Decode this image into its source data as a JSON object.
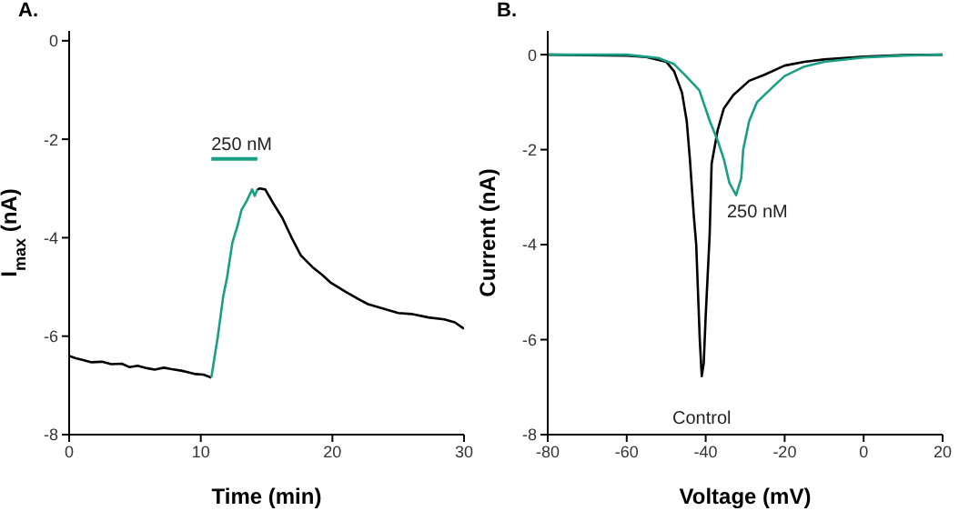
{
  "chart_data": [
    {
      "type": "line",
      "title": "A.",
      "xlabel": "Time (min)",
      "ylabel": "I$_{max}$ (nA)",
      "xlim": [
        0,
        30
      ],
      "ylim": [
        -8,
        0.2
      ],
      "xticks": [
        0,
        10,
        20,
        30
      ],
      "yticks": [
        -8,
        -6,
        -4,
        -2,
        0
      ],
      "marker": "none",
      "series": [
        {
          "color": "#000000",
          "x": [
            0,
            0.5,
            1.0,
            1.7,
            2.5,
            3.2,
            4.0,
            4.6,
            5.2,
            5.9,
            6.5,
            7.2,
            7.8,
            8.5,
            9.0,
            9.6,
            10.2,
            10.8
          ],
          "values": [
            -6.4,
            -6.45,
            -6.48,
            -6.53,
            -6.52,
            -6.57,
            -6.56,
            -6.63,
            -6.6,
            -6.65,
            -6.68,
            -6.64,
            -6.67,
            -6.7,
            -6.73,
            -6.77,
            -6.78,
            -6.84
          ]
        },
        {
          "color": "#1a9e84",
          "x": [
            10.8,
            11.3,
            11.7,
            12.0,
            12.4,
            12.8,
            13.1,
            13.5,
            13.9,
            14.1,
            14.3
          ],
          "values": [
            -6.84,
            -6.0,
            -5.2,
            -4.8,
            -4.1,
            -3.75,
            -3.43,
            -3.25,
            -3.02,
            -3.15,
            -3.02
          ]
        },
        {
          "color": "#000000",
          "x": [
            14.3,
            14.5,
            14.9,
            15.5,
            16.2,
            16.9,
            17.6,
            18.5,
            19.2,
            19.9,
            21.0,
            22.0,
            22.7,
            24.0,
            25.0,
            26.0,
            27.3,
            28.5,
            29.3,
            30.0
          ],
          "values": [
            -3.02,
            -3.0,
            -3.02,
            -3.3,
            -3.6,
            -4.0,
            -4.36,
            -4.6,
            -4.75,
            -4.92,
            -5.1,
            -5.25,
            -5.35,
            -5.45,
            -5.53,
            -5.55,
            -5.62,
            -5.66,
            -5.72,
            -5.85
          ]
        },
        {
          "type": "line",
          "name": "250 nM",
          "color": "#1a9e84",
          "x": [
            10.8,
            14.3
          ],
          "values": [
            -2.4,
            -2.4
          ]
        }
      ]
    },
    {
      "type": "line",
      "title": "B.",
      "xlabel": "Voltage (mV)",
      "ylabel": "Current (nA)",
      "xlim": [
        -80,
        20
      ],
      "ylim": [
        -8,
        0.5
      ],
      "xticks": [
        -80,
        -60,
        -40,
        -20,
        0,
        20
      ],
      "yticks": [
        -8,
        -6,
        -4,
        -2,
        0
      ],
      "marker": "none",
      "series": [
        {
          "name": "Control",
          "color": "#000000",
          "x": [
            -80,
            -60,
            -55,
            -50,
            -48,
            -46,
            -44.8,
            -44,
            -43,
            -42.4,
            -41.5,
            -41,
            -40.5,
            -40,
            -39,
            -38.5,
            -37,
            -35.4,
            -33,
            -29,
            -25,
            -20,
            -15,
            -10,
            0,
            10,
            20
          ],
          "values": [
            0,
            -0.02,
            -0.05,
            -0.15,
            -0.35,
            -0.8,
            -1.4,
            -2.2,
            -3.4,
            -4.0,
            -6.0,
            -6.77,
            -6.5,
            -5.5,
            -3.8,
            -2.3,
            -1.6,
            -1.13,
            -0.85,
            -0.55,
            -0.42,
            -0.23,
            -0.15,
            -0.1,
            -0.04,
            -0.01,
            0
          ]
        },
        {
          "name": "250 nM",
          "color": "#1a9e84",
          "x": [
            -80,
            -60,
            -52,
            -48,
            -45,
            -41.6,
            -39,
            -37,
            -35.4,
            -34,
            -32.3,
            -31,
            -30.5,
            -29,
            -27,
            -23,
            -20,
            -15,
            -10,
            0,
            10,
            20
          ],
          "values": [
            0,
            0,
            -0.07,
            -0.2,
            -0.45,
            -0.75,
            -1.39,
            -1.8,
            -2.2,
            -2.7,
            -2.96,
            -2.6,
            -2.0,
            -1.4,
            -1.0,
            -0.68,
            -0.45,
            -0.25,
            -0.15,
            -0.06,
            -0.02,
            0
          ]
        }
      ]
    }
  ]
}
